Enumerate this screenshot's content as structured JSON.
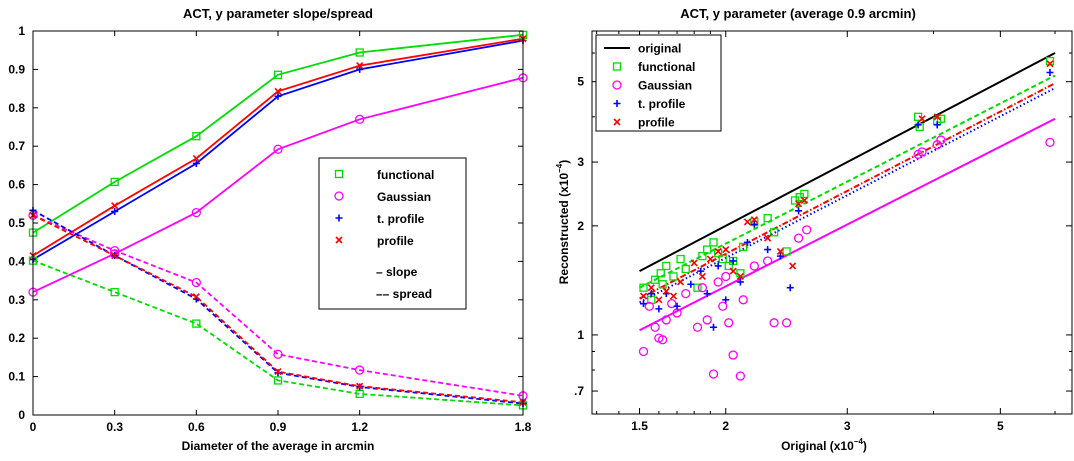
{
  "chart_data": [
    {
      "type": "line",
      "title": "ACT, y parameter slope/spread",
      "xlabel": "Diameter of the average in arcmin",
      "ylabel": "",
      "xlim": [
        0,
        1.8
      ],
      "ylim": [
        0,
        1
      ],
      "x_ticks": [
        "0",
        "0.3",
        "0.6",
        "0.9",
        "1.2",
        "1.8"
      ],
      "y_ticks": [
        "0",
        "0.1",
        "0.2",
        "0.3",
        "0.4",
        "0.5",
        "0.6",
        "0.7",
        "0.8",
        "0.9",
        "1"
      ],
      "x": [
        0,
        0.3,
        0.6,
        0.9,
        1.2,
        1.8
      ],
      "legend": {
        "position": "right-middle",
        "entries": [
          "functional",
          "Gaussian",
          "t. profile",
          "profile"
        ],
        "style_notes": [
          "– slope",
          "–– spread"
        ]
      },
      "series": [
        {
          "name": "functional",
          "line": "slope",
          "color": "#00dd00",
          "marker": "square",
          "values": [
            0.475,
            0.607,
            0.726,
            0.886,
            0.944,
            0.99
          ]
        },
        {
          "name": "Gaussian",
          "line": "slope",
          "color": "#ff00ff",
          "marker": "circle",
          "values": [
            0.32,
            0.42,
            0.527,
            0.692,
            0.77,
            0.878
          ]
        },
        {
          "name": "t. profile",
          "line": "slope",
          "color": "#0000ff",
          "marker": "plus",
          "values": [
            0.405,
            0.53,
            0.655,
            0.83,
            0.9,
            0.975
          ]
        },
        {
          "name": "profile",
          "line": "slope",
          "color": "#ff0000",
          "marker": "x",
          "values": [
            0.415,
            0.545,
            0.668,
            0.843,
            0.91,
            0.98
          ]
        },
        {
          "name": "functional",
          "line": "spread",
          "color": "#00dd00",
          "marker": "square",
          "values": [
            0.402,
            0.32,
            0.238,
            0.09,
            0.055,
            0.025
          ]
        },
        {
          "name": "Gaussian",
          "line": "spread",
          "color": "#ff00ff",
          "marker": "circle",
          "values": [
            0.52,
            0.428,
            0.345,
            0.158,
            0.117,
            0.05
          ]
        },
        {
          "name": "t. profile",
          "line": "spread",
          "color": "#0000ff",
          "marker": "plus",
          "values": [
            0.533,
            0.415,
            0.302,
            0.11,
            0.073,
            0.03
          ]
        },
        {
          "name": "profile",
          "line": "spread",
          "color": "#ff0000",
          "marker": "x",
          "values": [
            0.52,
            0.415,
            0.308,
            0.113,
            0.075,
            0.033
          ]
        }
      ]
    },
    {
      "type": "scatter",
      "title": "ACT, y parameter  (average 0.9 arcmin)",
      "xlabel": "Original  (x10",
      "ylabel": "Reconstructed  (x10",
      "axis_exponent": "−4",
      "axis_unit_close": ")",
      "scale": "log-log",
      "xlim": [
        1.28,
        6.35
      ],
      "ylim": [
        0.605,
        6.9
      ],
      "x_ticks": [
        1.5,
        2,
        3,
        5
      ],
      "x_tick_labels": [
        "1.5",
        "2",
        "3",
        "5"
      ],
      "y_ticks": [
        0.7,
        1,
        2,
        3,
        5
      ],
      "y_tick_labels": [
        ".7",
        "1",
        "2",
        "3",
        "5"
      ],
      "legend": {
        "position": "top-left",
        "entries": [
          "original",
          "functional",
          "Gaussian",
          "t. profile",
          "profile"
        ]
      },
      "lines": [
        {
          "name": "original",
          "color": "#000000",
          "style": "solid",
          "x": [
            1.5,
            6.0
          ],
          "y": [
            1.5,
            6.0
          ]
        },
        {
          "name": "functional",
          "color": "#00dd00",
          "style": "dashed",
          "x": [
            1.5,
            6.0
          ],
          "y": [
            1.35,
            5.2
          ]
        },
        {
          "name": "t. profile",
          "color": "#0000ff",
          "style": "dotted",
          "x": [
            1.5,
            6.0
          ],
          "y": [
            1.23,
            4.8
          ]
        },
        {
          "name": "profile",
          "color": "#ff0000",
          "style": "dashdot",
          "x": [
            1.5,
            6.0
          ],
          "y": [
            1.26,
            4.95
          ]
        },
        {
          "name": "Gaussian",
          "color": "#ff00ff",
          "style": "solid",
          "x": [
            1.5,
            6.0
          ],
          "y": [
            1.03,
            3.95
          ]
        }
      ],
      "series": [
        {
          "name": "functional",
          "marker": "square",
          "color": "#00dd00",
          "points": [
            [
              1.52,
              1.35
            ],
            [
              1.56,
              1.25
            ],
            [
              1.58,
              1.42
            ],
            [
              1.61,
              1.48
            ],
            [
              1.62,
              1.38
            ],
            [
              1.64,
              1.55
            ],
            [
              1.68,
              1.45
            ],
            [
              1.72,
              1.62
            ],
            [
              1.75,
              1.52
            ],
            [
              1.82,
              1.35
            ],
            [
              1.85,
              1.65
            ],
            [
              1.88,
              1.72
            ],
            [
              1.92,
              1.8
            ],
            [
              1.95,
              1.68
            ],
            [
              1.98,
              1.62
            ],
            [
              2.02,
              1.55
            ],
            [
              2.05,
              1.6
            ],
            [
              2.1,
              1.48
            ],
            [
              2.12,
              1.75
            ],
            [
              2.2,
              2.05
            ],
            [
              2.3,
              2.1
            ],
            [
              2.35,
              1.92
            ],
            [
              2.45,
              1.7
            ],
            [
              2.52,
              2.35
            ],
            [
              2.56,
              2.4
            ],
            [
              2.6,
              2.45
            ],
            [
              3.8,
              4.0
            ],
            [
              3.82,
              3.75
            ],
            [
              4.05,
              3.9
            ],
            [
              4.1,
              3.95
            ],
            [
              5.9,
              5.7
            ]
          ]
        },
        {
          "name": "Gaussian",
          "marker": "circle",
          "color": "#ff00ff",
          "points": [
            [
              1.52,
              0.9
            ],
            [
              1.55,
              1.2
            ],
            [
              1.58,
              1.05
            ],
            [
              1.6,
              0.98
            ],
            [
              1.62,
              0.97
            ],
            [
              1.64,
              1.1
            ],
            [
              1.67,
              1.22
            ],
            [
              1.7,
              1.15
            ],
            [
              1.75,
              1.3
            ],
            [
              1.82,
              1.05
            ],
            [
              1.85,
              1.35
            ],
            [
              1.88,
              1.1
            ],
            [
              1.92,
              0.78
            ],
            [
              1.95,
              1.4
            ],
            [
              1.98,
              1.2
            ],
            [
              2.0,
              1.45
            ],
            [
              2.02,
              1.08
            ],
            [
              2.05,
              0.88
            ],
            [
              2.1,
              0.77
            ],
            [
              2.12,
              1.25
            ],
            [
              2.2,
              1.55
            ],
            [
              2.3,
              1.6
            ],
            [
              2.35,
              1.08
            ],
            [
              2.45,
              1.08
            ],
            [
              2.55,
              1.85
            ],
            [
              2.62,
              1.95
            ],
            [
              3.8,
              3.15
            ],
            [
              3.85,
              3.2
            ],
            [
              4.05,
              3.35
            ],
            [
              4.1,
              3.45
            ],
            [
              5.9,
              3.4
            ]
          ]
        },
        {
          "name": "t. profile",
          "marker": "plus",
          "color": "#0000ff",
          "points": [
            [
              1.52,
              1.22
            ],
            [
              1.56,
              1.3
            ],
            [
              1.6,
              1.18
            ],
            [
              1.64,
              1.3
            ],
            [
              1.7,
              1.2
            ],
            [
              1.78,
              1.38
            ],
            [
              1.84,
              1.5
            ],
            [
              1.88,
              1.3
            ],
            [
              1.92,
              1.05
            ],
            [
              1.95,
              1.55
            ],
            [
              2.0,
              1.25
            ],
            [
              2.05,
              1.6
            ],
            [
              2.1,
              1.4
            ],
            [
              2.15,
              1.8
            ],
            [
              2.2,
              2.02
            ],
            [
              2.3,
              1.72
            ],
            [
              2.4,
              1.65
            ],
            [
              2.48,
              1.35
            ],
            [
              2.55,
              2.2
            ],
            [
              3.8,
              3.8
            ],
            [
              4.05,
              3.8
            ],
            [
              5.9,
              5.3
            ]
          ]
        },
        {
          "name": "profile",
          "marker": "x",
          "color": "#ff0000",
          "points": [
            [
              1.52,
              1.28
            ],
            [
              1.56,
              1.35
            ],
            [
              1.6,
              1.25
            ],
            [
              1.64,
              1.32
            ],
            [
              1.68,
              1.28
            ],
            [
              1.72,
              1.4
            ],
            [
              1.8,
              1.58
            ],
            [
              1.85,
              1.45
            ],
            [
              1.9,
              1.62
            ],
            [
              1.95,
              1.7
            ],
            [
              2.0,
              1.72
            ],
            [
              2.05,
              1.5
            ],
            [
              2.1,
              1.45
            ],
            [
              2.15,
              2.05
            ],
            [
              2.2,
              2.08
            ],
            [
              2.3,
              1.85
            ],
            [
              2.4,
              1.7
            ],
            [
              2.5,
              1.55
            ],
            [
              2.55,
              2.3
            ],
            [
              2.6,
              2.35
            ],
            [
              3.85,
              3.95
            ],
            [
              4.05,
              4.0
            ],
            [
              5.9,
              5.6
            ]
          ]
        }
      ]
    }
  ]
}
